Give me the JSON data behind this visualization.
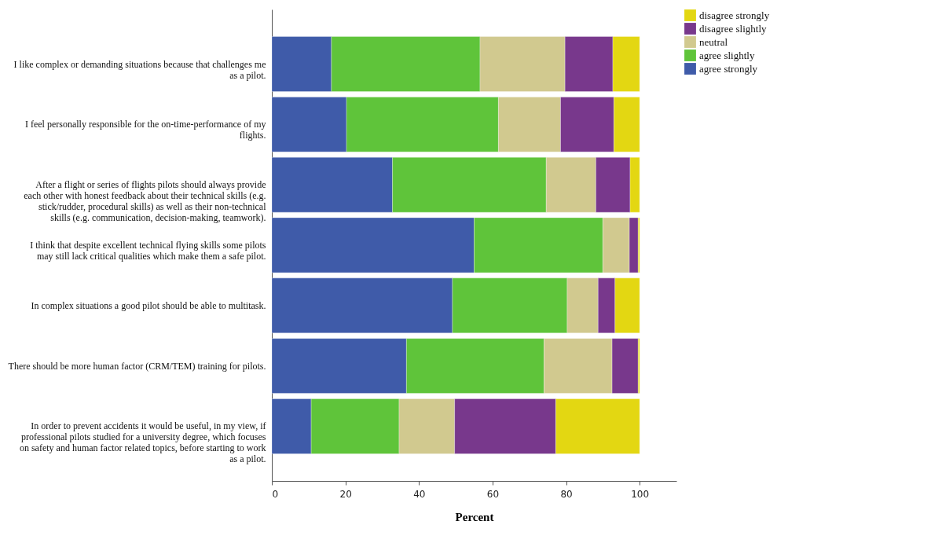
{
  "chart_data": {
    "type": "bar",
    "orientation": "horizontal",
    "stacked": true,
    "xlabel": "Percent",
    "legend": "top right",
    "grid": false,
    "categories": [
      "I like complex or demanding situations because that challenges me as a pilot.",
      "I feel personally responsible for the on-time-performance of my flights.",
      "After a flight or series of flights pilots should always provide each other with honest feedback about their technical skills (e.g. stick/rudder, procedural skills) as well as their non-technical skills (e.g. communication, decision-making, teamwork).",
      "I think that despite excellent technical flying skills some pilots may still lack critical qualities which make them a safe pilot.",
      "In complex situations a good pilot should be able to multitask.",
      "There should be more human factor (CRM/TEM) training for pilots.",
      "In order to prevent accidents it would be useful, in my view, if professional pilots studied for a university degree, which focuses on safety and human factor related topics, before starting to work as a pilot."
    ],
    "series": [
      {
        "name": "agree strongly",
        "color": "#3f5ba9",
        "values": [
          16.2,
          20.3,
          32.8,
          55.0,
          49.1,
          36.6,
          10.7
        ]
      },
      {
        "name": "agree slightly",
        "color": "#5fc43a",
        "values": [
          40.4,
          41.3,
          41.8,
          35.0,
          31.2,
          37.4,
          23.9
        ]
      },
      {
        "name": "neutral",
        "color": "#d1c98f",
        "values": [
          23.1,
          16.9,
          13.5,
          7.2,
          8.4,
          18.5,
          15.1
        ]
      },
      {
        "name": "disagree slightly",
        "color": "#78388c",
        "values": [
          13.0,
          14.5,
          9.3,
          2.4,
          4.6,
          7.1,
          27.5
        ]
      },
      {
        "name": "disagree strongly",
        "color": "#e3d712",
        "values": [
          7.3,
          7.0,
          2.6,
          0.4,
          6.7,
          0.4,
          22.8
        ]
      }
    ],
    "xlim": [
      0,
      110
    ],
    "xticks": [
      0,
      20,
      40,
      60,
      80,
      100
    ]
  }
}
